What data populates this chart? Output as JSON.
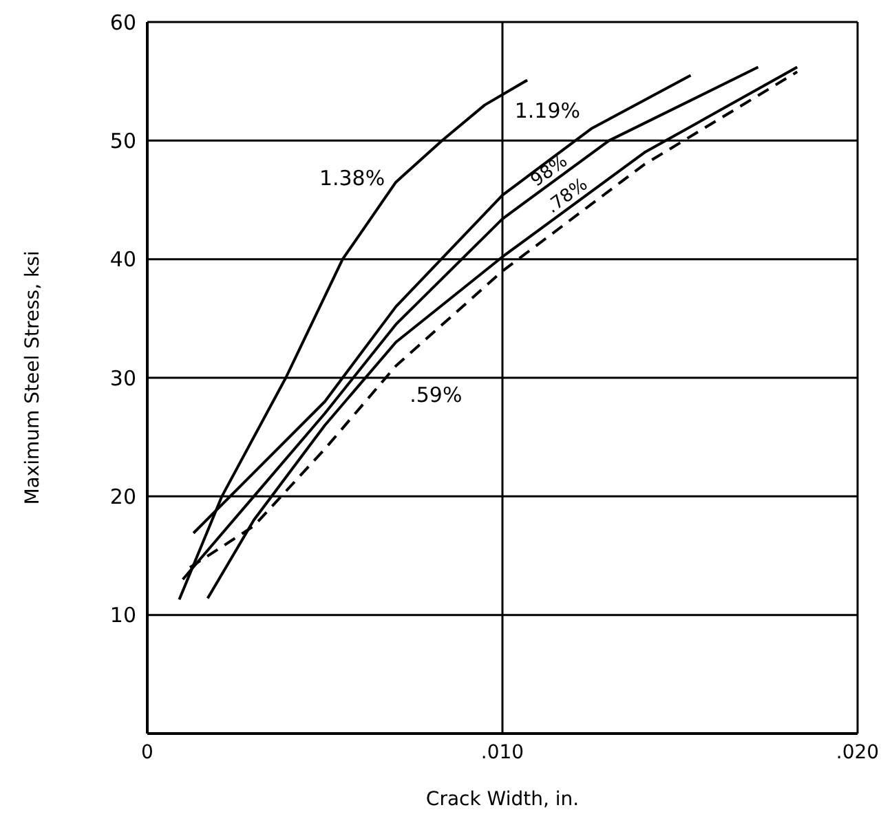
{
  "chart_data": {
    "type": "line",
    "xlabel": "Crack Width, in.",
    "ylabel": "Maximum Steel Stress, ksi",
    "xlim": [
      0,
      0.02
    ],
    "xticks": [
      {
        "value": 0,
        "label": "0"
      },
      {
        "value": 0.01,
        "label": ".010"
      },
      {
        "value": 0.02,
        "label": ".020"
      }
    ],
    "ylim": [
      0,
      60
    ],
    "yticks": [
      10,
      20,
      30,
      40,
      50,
      60
    ],
    "grid": true,
    "legend": false,
    "marker": "none",
    "series": [
      {
        "name": "1.38%",
        "color": "#000000",
        "line_style": "solid",
        "x": [
          0.0009,
          0.0021,
          0.0039,
          0.0055,
          0.007,
          0.0083,
          0.0095,
          0.0107
        ],
        "values": [
          11.3,
          20,
          30,
          40,
          46.5,
          50,
          53,
          55.1
        ]
      },
      {
        "name": "1.19%",
        "color": "#000000",
        "line_style": "solid",
        "x": [
          0.0013,
          0.003,
          0.005,
          0.007,
          0.01,
          0.0125,
          0.0153
        ],
        "values": [
          16.9,
          22,
          28,
          36,
          45.4,
          51,
          55.5
        ]
      },
      {
        "name": "98%",
        "color": "#000000",
        "line_style": "solid",
        "x": [
          0.001,
          0.003,
          0.005,
          0.007,
          0.01,
          0.013,
          0.0172
        ],
        "values": [
          13,
          20,
          27,
          34.5,
          43.4,
          50,
          56.2
        ]
      },
      {
        "name": ".78%",
        "color": "#000000",
        "line_style": "solid",
        "x": [
          0.0017,
          0.003,
          0.005,
          0.007,
          0.01,
          0.014,
          0.0183
        ],
        "values": [
          11.4,
          18,
          26,
          33,
          40.2,
          49,
          56.2
        ]
      },
      {
        "name": ".59%",
        "color": "#000000",
        "line_style": "dashed",
        "x": [
          0.0012,
          0.003,
          0.005,
          0.007,
          0.01,
          0.014,
          0.0183
        ],
        "values": [
          14,
          17.5,
          24,
          31,
          39,
          48,
          55.8
        ]
      }
    ]
  }
}
